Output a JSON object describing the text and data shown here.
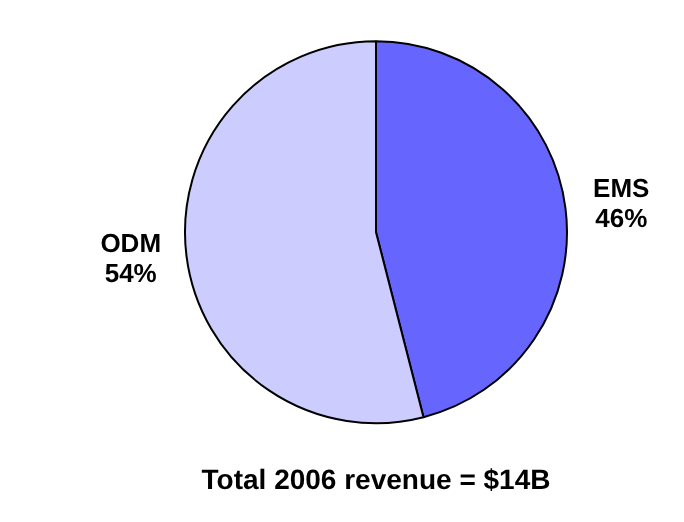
{
  "chart_data": {
    "type": "pie",
    "title": "Total 2006 revenue = $14B",
    "categories": [
      "EMS",
      "ODM"
    ],
    "values": [
      46,
      54
    ],
    "value_labels": [
      "46%",
      "54%"
    ],
    "colors": [
      "#6666ff",
      "#ccccff"
    ],
    "legend": false
  }
}
